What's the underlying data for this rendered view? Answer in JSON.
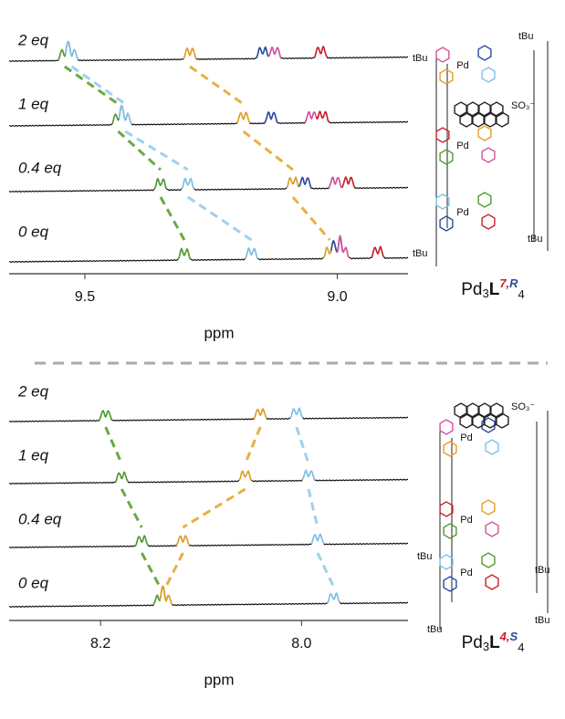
{
  "chart_data": [
    {
      "type": "spectrum",
      "xlabel": "ppm",
      "xlim": [
        9.65,
        8.86
      ],
      "xticks": [
        9.5,
        {
          "value": 9.0,
          "label": "9.0"
        }
      ],
      "series": [
        {
          "name": "2 eq",
          "peaks": [
            9.54,
            9.526,
            9.292,
            9.148,
            9.124,
            9.033
          ],
          "colors": [
            "#4e9a2e",
            "#7cc0e8",
            "#e0a020",
            "#2a4aa0",
            "#d4509a",
            "#c8202a"
          ]
        },
        {
          "name": "1 eq",
          "peaks": [
            9.434,
            9.42,
            9.186,
            9.131,
            9.051,
            9.029
          ],
          "colors": [
            "#4e9a2e",
            "#7cc0e8",
            "#e0a020",
            "#2a4aa0",
            "#d4509a",
            "#c8202a"
          ]
        },
        {
          "name": "0.4 eq",
          "peaks": [
            9.35,
            9.296,
            9.088,
            9.064,
            9.004,
            8.978
          ],
          "colors": [
            "#4e9a2e",
            "#7cc0e8",
            "#e0a020",
            "#2a4aa0",
            "#d4509a",
            "#c8202a"
          ]
        },
        {
          "name": "0 eq",
          "peaks": [
            9.303,
            9.17,
            9.015,
            9.0,
            8.989,
            8.92
          ],
          "colors": [
            "#4e9a2e",
            "#7cc0e8",
            "#e0a020",
            "#2a4aa0",
            "#d4509a",
            "#c8202a"
          ]
        }
      ],
      "compound": [
        "Pd",
        "3",
        "L",
        "7,",
        "R",
        "4"
      ],
      "structure_labels": [
        "Pd",
        "Pd",
        "Pd",
        "tBu",
        "tBu",
        "tBu",
        "tBu",
        "SO₃⁻"
      ]
    },
    {
      "type": "spectrum",
      "xlabel": "ppm",
      "xlim": [
        8.291,
        7.894
      ],
      "xticks": [
        8.2,
        {
          "value": 8.0,
          "label": "8.0"
        }
      ],
      "series": [
        {
          "name": "2 eq",
          "peaks": [
            8.195,
            8.041,
            8.005
          ],
          "colors": [
            "#4e9a2e",
            "#e0a020",
            "#7cc0e8"
          ]
        },
        {
          "name": "1 eq",
          "peaks": [
            8.179,
            8.056,
            7.993
          ],
          "colors": [
            "#4e9a2e",
            "#e0a020",
            "#7cc0e8"
          ]
        },
        {
          "name": "0.4 eq",
          "peaks": [
            8.159,
            8.118,
            7.984
          ],
          "colors": [
            "#4e9a2e",
            "#e0a020",
            "#7cc0e8"
          ]
        },
        {
          "name": "0 eq",
          "peaks": [
            8.141,
            8.135,
            7.968
          ],
          "colors": [
            "#4e9a2e",
            "#e0a020",
            "#7cc0e8"
          ]
        }
      ],
      "compound": [
        "Pd",
        "3",
        "L",
        "4,",
        "S",
        "4"
      ],
      "structure_labels": [
        "Pd",
        "Pd",
        "Pd",
        "tBu",
        "tBu",
        "tBu",
        "tBu",
        "SO₃⁻"
      ]
    }
  ]
}
